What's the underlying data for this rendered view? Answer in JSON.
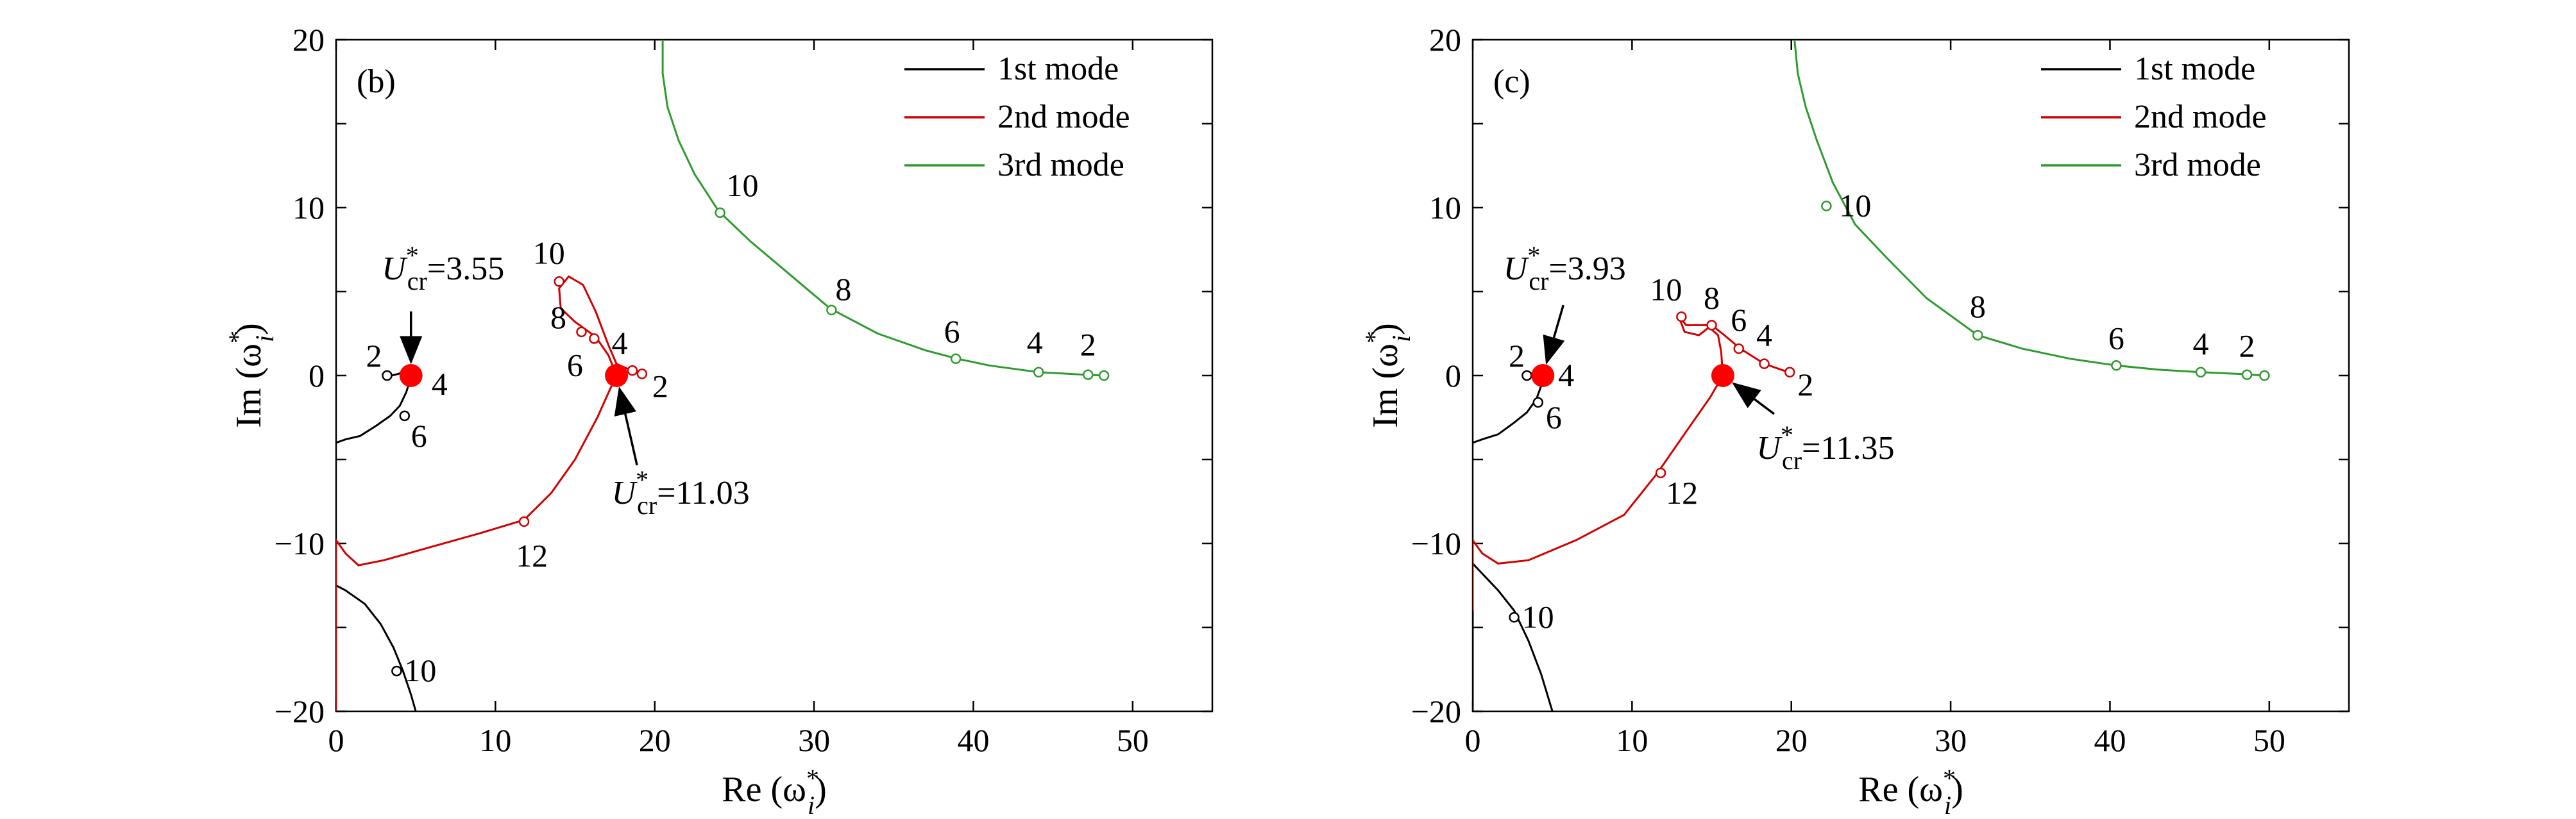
{
  "chart_data": [
    {
      "type": "line",
      "panel_label": "(b)",
      "xlabel": {
        "prefix": "Re (ω",
        "sup": "*",
        "sub": "i",
        "suffix": ")"
      },
      "ylabel": {
        "prefix": "Im (ω",
        "sup": "*",
        "sub": "i",
        "suffix": ")"
      },
      "xlim": [
        0,
        55
      ],
      "ylim": [
        -20,
        20
      ],
      "xticks": [
        0,
        10,
        20,
        30,
        40,
        50
      ],
      "yticks": [
        -20,
        -10,
        0,
        10,
        20
      ],
      "legend": {
        "placement": "top-right"
      },
      "series": [
        {
          "name": "1st mode",
          "color": "#000000",
          "curves": [
            [
              [
                0,
                -4.0
              ],
              [
                0.6,
                -3.8
              ],
              [
                1.5,
                -3.6
              ],
              [
                2.5,
                -3.0
              ],
              [
                3.4,
                -2.4
              ],
              [
                4.0,
                -1.8
              ],
              [
                4.4,
                -1.0
              ],
              [
                4.6,
                -0.4
              ],
              [
                4.7,
                0.0
              ],
              [
                4.6,
                0.15
              ],
              [
                4.2,
                0.2
              ],
              [
                3.9,
                0.1
              ],
              [
                3.5,
                0.0
              ],
              [
                3.0,
                0.0
              ]
            ],
            [
              [
                0,
                -12.5
              ],
              [
                0.6,
                -12.8
              ],
              [
                1.8,
                -13.6
              ],
              [
                2.8,
                -14.8
              ],
              [
                3.6,
                -16.2
              ],
              [
                4.2,
                -17.6
              ],
              [
                4.7,
                -19.0
              ],
              [
                5.0,
                -20.0
              ]
            ],
            [
              [
                0,
                -20.0
              ],
              [
                0,
                -12.5
              ]
            ]
          ],
          "markers": [
            {
              "label": "2",
              "x": 3.2,
              "y": 0.0,
              "dx": -8,
              "dy": -14,
              "anchor": "end"
            },
            {
              "label": "6",
              "x": 4.3,
              "y": -2.4,
              "dx": 10,
              "dy": 48,
              "anchor": "start"
            },
            {
              "label": "10",
              "x": 3.8,
              "y": -17.6,
              "dx": 12,
              "dy": 16,
              "anchor": "start"
            }
          ],
          "extra_labels": [
            {
              "label": "4",
              "x": 4.7,
              "y": 0.0,
              "dx": 32,
              "dy": 30,
              "anchor": "start"
            }
          ]
        },
        {
          "name": "2nd mode",
          "color": "#d00000",
          "curves": [
            [
              [
                0,
                -20.0
              ],
              [
                0,
                -9.8
              ],
              [
                0.6,
                -10.6
              ],
              [
                1.4,
                -11.3
              ],
              [
                3.0,
                -11.0
              ],
              [
                6.0,
                -10.2
              ],
              [
                9.0,
                -9.4
              ],
              [
                11.8,
                -8.6
              ],
              [
                13.5,
                -7.0
              ],
              [
                15.0,
                -5.0
              ],
              [
                16.4,
                -2.5
              ],
              [
                17.2,
                -0.8
              ],
              [
                17.6,
                0.0
              ],
              [
                17.1,
                1.2
              ],
              [
                16.3,
                2.3
              ],
              [
                15.0,
                3.2
              ],
              [
                14.1,
                4.0
              ],
              [
                14.0,
                5.2
              ],
              [
                14.6,
                5.9
              ],
              [
                15.5,
                5.4
              ],
              [
                16.3,
                3.8
              ],
              [
                17.1,
                1.8
              ],
              [
                17.6,
                0.7
              ],
              [
                18.3,
                0.4
              ],
              [
                19.0,
                0.2
              ],
              [
                19.4,
                0.1
              ]
            ]
          ],
          "markers": [
            {
              "label": "10",
              "x": 14.0,
              "y": 5.6,
              "dx": -16,
              "dy": -28,
              "anchor": "middle"
            },
            {
              "label": "8",
              "x": 15.4,
              "y": 2.6,
              "dx": -36,
              "dy": -6,
              "anchor": "middle"
            },
            {
              "label": "6",
              "x": 16.2,
              "y": 2.2,
              "dx": -30,
              "dy": 58,
              "anchor": "middle"
            },
            {
              "label": "4",
              "x": 18.6,
              "y": 0.3,
              "dx": -20,
              "dy": -26,
              "anchor": "middle"
            },
            {
              "label": "2",
              "x": 19.2,
              "y": 0.1,
              "dx": 16,
              "dy": 36,
              "anchor": "start"
            },
            {
              "label": "12",
              "x": 11.8,
              "y": -8.7,
              "dx": 12,
              "dy": 70,
              "anchor": "middle"
            }
          ]
        },
        {
          "name": "3rd mode",
          "color": "#2e9b2e",
          "curves": [
            [
              [
                20.5,
                20.0
              ],
              [
                20.5,
                18.0
              ],
              [
                20.8,
                16.0
              ],
              [
                21.5,
                14.0
              ],
              [
                22.5,
                12.0
              ],
              [
                24.0,
                9.8
              ],
              [
                26.0,
                8.0
              ],
              [
                28.0,
                6.4
              ],
              [
                31.0,
                4.0
              ],
              [
                34.0,
                2.5
              ],
              [
                37.0,
                1.5
              ],
              [
                39.0,
                1.0
              ],
              [
                41.0,
                0.6
              ],
              [
                44.1,
                0.2
              ],
              [
                46.0,
                0.1
              ],
              [
                47.0,
                0.05
              ],
              [
                48.2,
                0.0
              ]
            ]
          ],
          "markers": [
            {
              "label": "10",
              "x": 24.1,
              "y": 9.7,
              "dx": 10,
              "dy": -26,
              "anchor": "start"
            },
            {
              "label": "8",
              "x": 31.1,
              "y": 3.9,
              "dx": 6,
              "dy": -16,
              "anchor": "start"
            },
            {
              "label": "6",
              "x": 38.9,
              "y": 1.0,
              "dx": -6,
              "dy": -26,
              "anchor": "middle"
            },
            {
              "label": "4",
              "x": 44.1,
              "y": 0.2,
              "dx": -6,
              "dy": -30,
              "anchor": "middle"
            },
            {
              "label": "2",
              "x": 47.2,
              "y": 0.05,
              "dx": 0,
              "dy": -30,
              "anchor": "middle"
            },
            {
              "label": "",
              "x": 48.2,
              "y": 0.0
            }
          ]
        }
      ],
      "critical_points": [
        {
          "x": 4.7,
          "y": 0.0,
          "base": "U",
          "sub": "cr",
          "sup": "*",
          "value": "=3.55",
          "text_dx": 50,
          "text_dy": -150,
          "text_anchor": "middle",
          "arrow_from_dx": 0,
          "arrow_from_dy": -100
        },
        {
          "x": 17.6,
          "y": 0.0,
          "base": "U",
          "sub": "cr",
          "sup": "*",
          "value": "=11.03",
          "text_dx": 100,
          "text_dy": 200,
          "text_anchor": "middle",
          "arrow_from_dx": 32,
          "arrow_from_dy": 140
        }
      ]
    },
    {
      "type": "line",
      "panel_label": "(c)",
      "xlabel": {
        "prefix": "Re (ω",
        "sup": "*",
        "sub": "i",
        "suffix": ")"
      },
      "ylabel": {
        "prefix": "Im (ω",
        "sup": "*",
        "sub": "i",
        "suffix": ")"
      },
      "xlim": [
        0,
        55
      ],
      "ylim": [
        -20,
        20
      ],
      "xticks": [
        0,
        10,
        20,
        30,
        40,
        50
      ],
      "yticks": [
        -20,
        -10,
        0,
        10,
        20
      ],
      "legend": {
        "placement": "top-right"
      },
      "series": [
        {
          "name": "1st mode",
          "color": "#000000",
          "curves": [
            [
              [
                0,
                -4.0
              ],
              [
                0.6,
                -3.8
              ],
              [
                1.6,
                -3.5
              ],
              [
                2.6,
                -2.8
              ],
              [
                3.4,
                -2.2
              ],
              [
                4.0,
                -1.4
              ],
              [
                4.3,
                -0.6
              ],
              [
                4.4,
                0.0
              ],
              [
                4.3,
                0.15
              ],
              [
                4.0,
                0.2
              ],
              [
                3.6,
                0.1
              ],
              [
                3.2,
                0.0
              ]
            ],
            [
              [
                0,
                -11.2
              ],
              [
                0.6,
                -11.8
              ],
              [
                1.6,
                -12.8
              ],
              [
                2.6,
                -14.0
              ],
              [
                3.5,
                -15.8
              ],
              [
                4.3,
                -17.8
              ],
              [
                5.0,
                -20.0
              ]
            ],
            [
              [
                0,
                -20.0
              ],
              [
                0,
                -11.2
              ]
            ]
          ],
          "markers": [
            {
              "label": "2",
              "x": 3.4,
              "y": 0.0,
              "dx": -16,
              "dy": -14,
              "anchor": "middle"
            },
            {
              "label": "6",
              "x": 4.1,
              "y": -1.6,
              "dx": 12,
              "dy": 40,
              "anchor": "start"
            },
            {
              "label": "10",
              "x": 2.6,
              "y": -14.4,
              "dx": 12,
              "dy": 16,
              "anchor": "start"
            }
          ],
          "extra_labels": [
            {
              "label": "4",
              "x": 4.4,
              "y": 0.0,
              "dx": 24,
              "dy": 16,
              "anchor": "start"
            }
          ]
        },
        {
          "name": "2nd mode",
          "color": "#d00000",
          "curves": [
            [
              [
                0,
                -14.0
              ],
              [
                0,
                -9.8
              ],
              [
                0.6,
                -10.6
              ],
              [
                1.6,
                -11.2
              ],
              [
                3.5,
                -11.0
              ],
              [
                6.5,
                -9.8
              ],
              [
                9.5,
                -8.3
              ],
              [
                11.6,
                -5.8
              ],
              [
                13.5,
                -3.2
              ],
              [
                14.9,
                -1.3
              ],
              [
                15.7,
                0.0
              ],
              [
                15.6,
                1.4
              ],
              [
                15.4,
                2.4
              ],
              [
                14.7,
                3.0
              ],
              [
                13.4,
                3.0
              ],
              [
                12.9,
                3.6
              ],
              [
                13.3,
                2.6
              ],
              [
                14.2,
                2.4
              ],
              [
                15.0,
                3.0
              ],
              [
                15.8,
                2.4
              ],
              [
                16.8,
                1.6
              ],
              [
                18.3,
                0.7
              ],
              [
                19.5,
                0.3
              ],
              [
                20.2,
                0.1
              ]
            ]
          ],
          "markers": [
            {
              "label": "10",
              "x": 13.1,
              "y": 3.5,
              "dx": -24,
              "dy": -26,
              "anchor": "middle"
            },
            {
              "label": "8",
              "x": 15.0,
              "y": 3.0,
              "dx": 0,
              "dy": -26,
              "anchor": "middle"
            },
            {
              "label": "6",
              "x": 16.7,
              "y": 1.6,
              "dx": 0,
              "dy": -28,
              "anchor": "middle"
            },
            {
              "label": "4",
              "x": 18.3,
              "y": 0.7,
              "dx": 0,
              "dy": -28,
              "anchor": "middle"
            },
            {
              "label": "2",
              "x": 19.9,
              "y": 0.2,
              "dx": 12,
              "dy": 36,
              "anchor": "start"
            },
            {
              "label": "12",
              "x": 11.8,
              "y": -5.8,
              "dx": 8,
              "dy": 48,
              "anchor": "start"
            }
          ]
        },
        {
          "name": "3rd mode",
          "color": "#2e9b2e",
          "curves": [
            [
              [
                20.2,
                20.0
              ],
              [
                20.4,
                18.0
              ],
              [
                20.9,
                16.0
              ],
              [
                21.6,
                14.0
              ],
              [
                22.6,
                11.5
              ],
              [
                24.0,
                9.0
              ],
              [
                26.0,
                7.0
              ],
              [
                28.5,
                4.6
              ],
              [
                31.7,
                2.4
              ],
              [
                34.5,
                1.6
              ],
              [
                37.5,
                1.0
              ],
              [
                40.4,
                0.6
              ],
              [
                43.0,
                0.35
              ],
              [
                45.7,
                0.2
              ],
              [
                48.0,
                0.1
              ],
              [
                49.7,
                0.0
              ]
            ]
          ],
          "markers": [
            {
              "label": "10",
              "x": 22.2,
              "y": 10.1,
              "dx": 20,
              "dy": 16,
              "anchor": "start"
            },
            {
              "label": "8",
              "x": 31.7,
              "y": 2.4,
              "dx": 0,
              "dy": -28,
              "anchor": "middle"
            },
            {
              "label": "6",
              "x": 40.4,
              "y": 0.6,
              "dx": 0,
              "dy": -26,
              "anchor": "middle"
            },
            {
              "label": "4",
              "x": 45.7,
              "y": 0.2,
              "dx": 0,
              "dy": -28,
              "anchor": "middle"
            },
            {
              "label": "2",
              "x": 48.6,
              "y": 0.05,
              "dx": 0,
              "dy": -28,
              "anchor": "middle"
            },
            {
              "label": "",
              "x": 49.7,
              "y": 0.0
            }
          ]
        }
      ],
      "critical_points": [
        {
          "x": 4.4,
          "y": 0.0,
          "base": "U",
          "sub": "cr",
          "sup": "*",
          "value": "=3.93",
          "text_dx": 34,
          "text_dy": -150,
          "text_anchor": "middle",
          "arrow_from_dx": 32,
          "arrow_from_dy": -110
        },
        {
          "x": 15.7,
          "y": 0.0,
          "base": "U",
          "sub": "cr",
          "sup": "*",
          "value": "=11.35",
          "text_dx": 160,
          "text_dy": 130,
          "text_anchor": "middle",
          "arrow_from_dx": 80,
          "arrow_from_dy": 60
        }
      ]
    }
  ]
}
